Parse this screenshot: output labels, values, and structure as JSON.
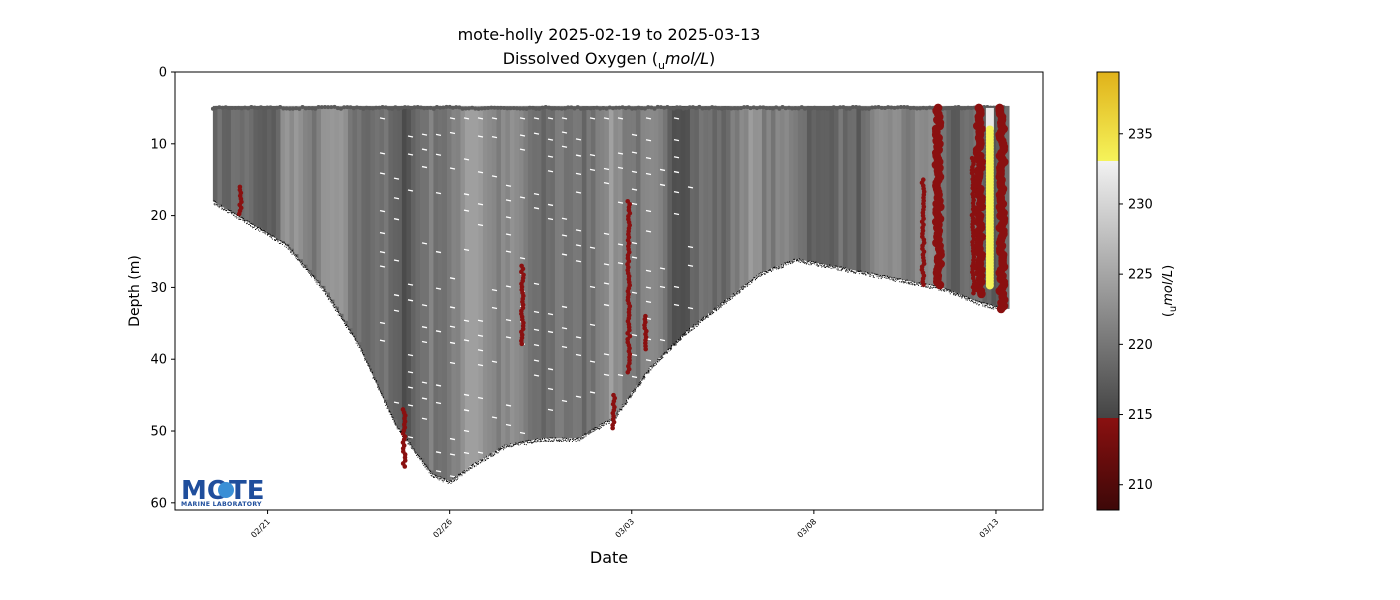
{
  "chart_data": {
    "type": "scatter",
    "title": "mote-holly 2025-02-19 to 2025-03-13",
    "subtitle_prefix": "Dissolved Oxygen (",
    "subtitle_unit_sub": "u",
    "subtitle_unit_main": "mol/L",
    "subtitle_suffix": ")",
    "xlabel": "Date",
    "ylabel": "Depth (m)",
    "x_ticks": [
      "02/21",
      "02/26",
      "03/03",
      "03/08",
      "03/13"
    ],
    "y_ticks": [
      0,
      10,
      20,
      30,
      40,
      50,
      60
    ],
    "ylim": [
      0,
      61
    ],
    "y_inverted": true,
    "xlim": [
      "2025-02-18T11:00",
      "2025-03-14T07:00"
    ],
    "colorbar": {
      "label_sub": "u",
      "label_main": "mol/L",
      "ticks": [
        210,
        215,
        220,
        225,
        230,
        235
      ],
      "range": [
        208.2,
        239.4
      ],
      "colors": {
        "low_dark": "#3d0808",
        "low": "#8a1010",
        "mid_dark": "#444444",
        "mid_light": "#f2f2f2",
        "high": "#f5f35a",
        "high_top": "#e0b21a"
      },
      "band_edges": [
        214.8,
        233.1
      ]
    },
    "profile": {
      "description_free": true,
      "surface_depth": 5,
      "bottom_depth_by_date": [
        {
          "x": "2025-02-19T12:00",
          "depth": 18
        },
        {
          "x": "2025-02-20T12:00",
          "depth": 21
        },
        {
          "x": "2025-02-21T12:00",
          "depth": 24
        },
        {
          "x": "2025-02-22T12:00",
          "depth": 30
        },
        {
          "x": "2025-02-23T12:00",
          "depth": 38
        },
        {
          "x": "2025-02-24T12:00",
          "depth": 49
        },
        {
          "x": "2025-02-25T12:00",
          "depth": 56
        },
        {
          "x": "2025-02-26T00:00",
          "depth": 57
        },
        {
          "x": "2025-02-26T12:00",
          "depth": 55
        },
        {
          "x": "2025-02-27T12:00",
          "depth": 52
        },
        {
          "x": "2025-02-28T12:00",
          "depth": 51
        },
        {
          "x": "2025-03-01T12:00",
          "depth": 51
        },
        {
          "x": "2025-03-02T12:00",
          "depth": 48
        },
        {
          "x": "2025-03-03T12:00",
          "depth": 41
        },
        {
          "x": "2025-03-04T12:00",
          "depth": 36
        },
        {
          "x": "2025-03-05T12:00",
          "depth": 32
        },
        {
          "x": "2025-03-06T12:00",
          "depth": 28
        },
        {
          "x": "2025-03-07T12:00",
          "depth": 26
        },
        {
          "x": "2025-03-08T12:00",
          "depth": 27
        },
        {
          "x": "2025-03-09T12:00",
          "depth": 28
        },
        {
          "x": "2025-03-10T12:00",
          "depth": 29
        },
        {
          "x": "2025-03-11T12:00",
          "depth": 30
        },
        {
          "x": "2025-03-12T12:00",
          "depth": 32
        },
        {
          "x": "2025-03-13T06:00",
          "depth": 33
        }
      ],
      "low_oxygen_segments": [
        {
          "x": "2025-02-20T06:00",
          "top": 16,
          "bottom": 20
        },
        {
          "x": "2025-02-24T18:00",
          "top": 47,
          "bottom": 55
        },
        {
          "x": "2025-02-28T00:00",
          "top": 27,
          "bottom": 38
        },
        {
          "x": "2025-03-02T12:00",
          "top": 45,
          "bottom": 50
        },
        {
          "x": "2025-03-02T22:00",
          "top": 18,
          "bottom": 42
        },
        {
          "x": "2025-03-03T09:00",
          "top": 34,
          "bottom": 39
        },
        {
          "x": "2025-03-11T00:00",
          "top": 15,
          "bottom": 30
        },
        {
          "x": "2025-03-11T10:00",
          "top": 5,
          "bottom": 30
        },
        {
          "x": "2025-03-12T09:00",
          "top": 12,
          "bottom": 31
        },
        {
          "x": "2025-03-12T13:00",
          "top": 5,
          "bottom": 31
        },
        {
          "x": "2025-03-13T04:00",
          "top": 5,
          "bottom": 33
        }
      ],
      "high_oxygen_segments": [
        {
          "x": "2025-03-12T20:00",
          "top": 8,
          "bottom": 30
        }
      ]
    },
    "logo": {
      "word": "MOTE",
      "subtext": "MARINE LABORATORY"
    }
  }
}
